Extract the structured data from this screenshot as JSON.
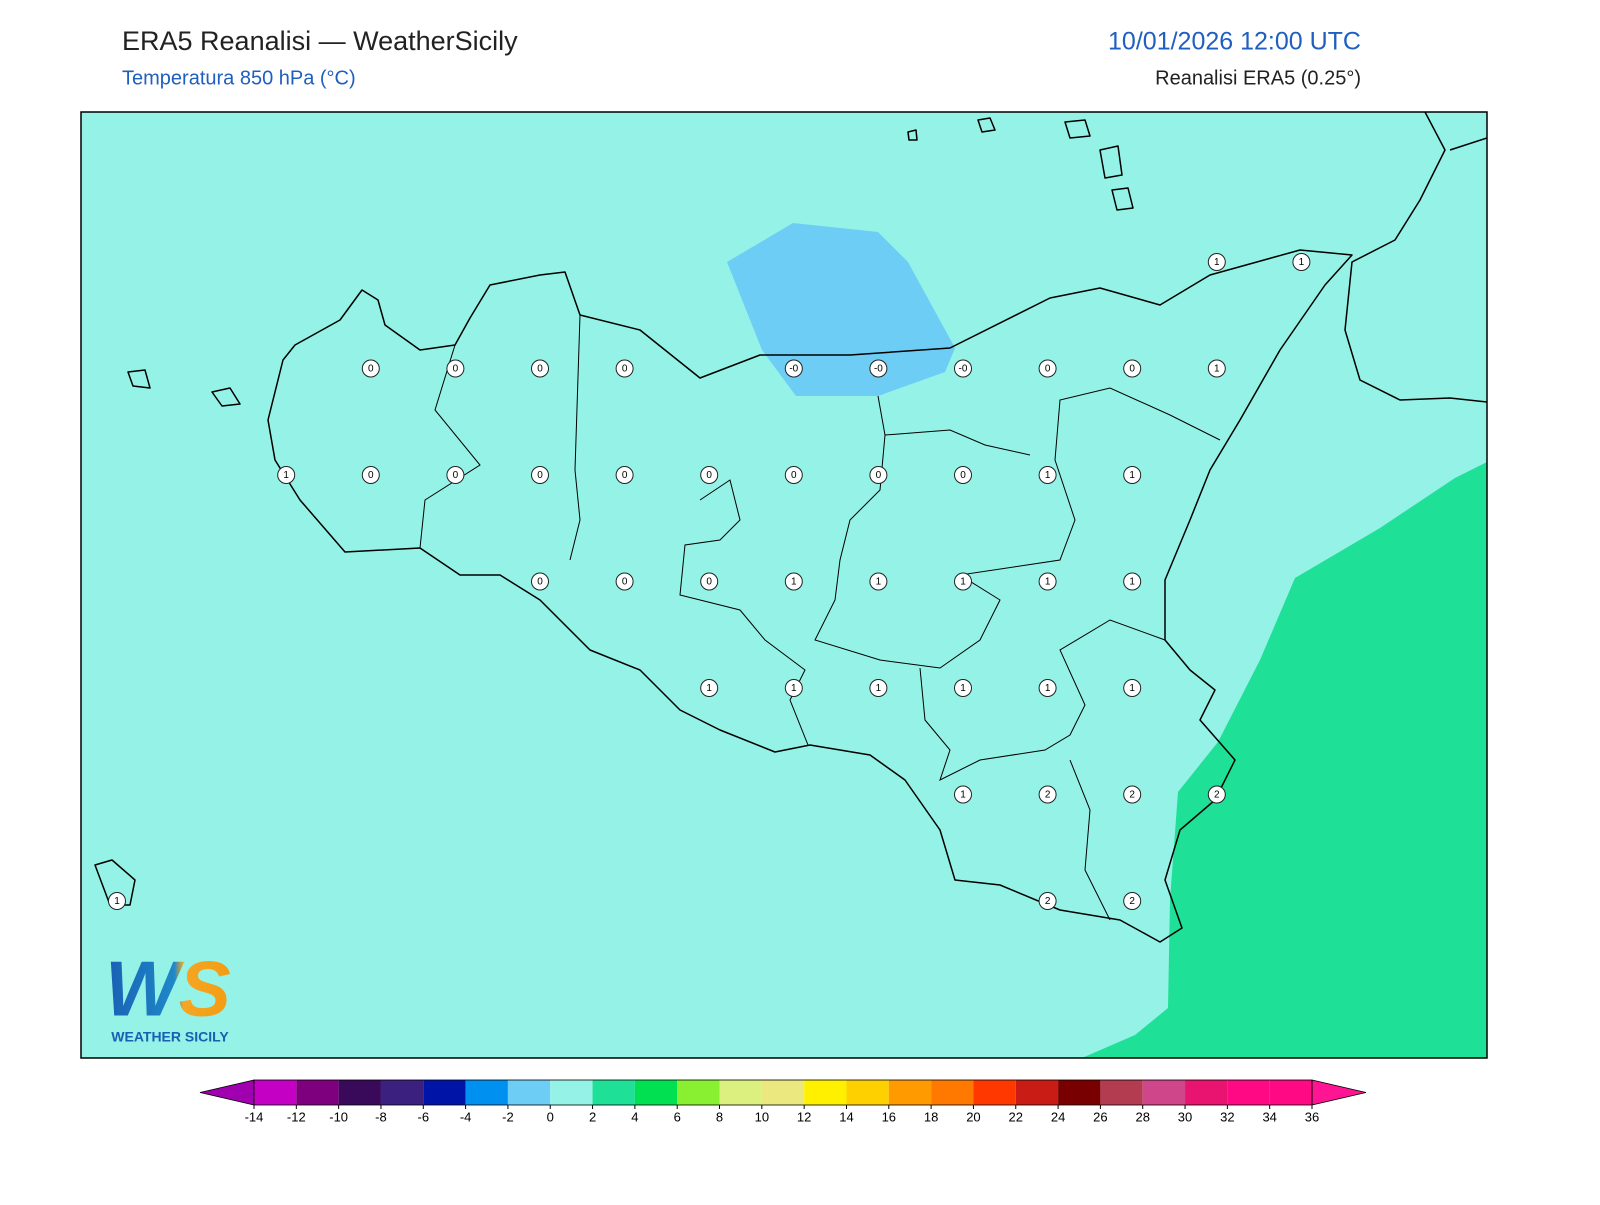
{
  "header": {
    "title": "ERA5 Reanalisi — WeatherSicily",
    "subtitle": "Temperatura 850 hPa (°C)",
    "datetime": "10/01/2026 12:00 UTC",
    "source": "Reanalisi ERA5 (0.25°)"
  },
  "map": {
    "points": [
      "1",
      "1",
      "0",
      "0",
      "0",
      "0",
      "-0",
      "-0",
      "-0",
      "0",
      "0",
      "1",
      "1",
      "0",
      "0",
      "0",
      "0",
      "0",
      "0",
      "0",
      "0",
      "1",
      "1",
      "0",
      "0",
      "0",
      "1",
      "1",
      "1",
      "1",
      "1",
      "1",
      "1",
      "1",
      "1",
      "1",
      "1",
      "1",
      "2",
      "2",
      "2",
      "1",
      "2",
      "2"
    ]
  },
  "logo": {
    "text": "WS",
    "caption": "WEATHER SICILY"
  },
  "legend": {
    "ticks": [
      -14,
      -12,
      -10,
      -8,
      -6,
      -4,
      -2,
      0,
      2,
      4,
      6,
      8,
      10,
      12,
      14,
      16,
      18,
      20,
      22,
      24,
      26,
      28,
      30,
      32,
      34,
      36
    ],
    "colors": [
      "#a000b0",
      "#c400c4",
      "#7f007f",
      "#3a0a5a",
      "#3b2080",
      "#0014a8",
      "#0090f0",
      "#6dcdf5",
      "#95f2e6",
      "#1ee096",
      "#00e050",
      "#88f030",
      "#dcf080",
      "#ece880",
      "#fff000",
      "#ffd000",
      "#ff9a00",
      "#ff7800",
      "#ff3800",
      "#c81c14",
      "#780000",
      "#b43c50",
      "#d0468a",
      "#e81470",
      "#ff0a84",
      "#ff0a84",
      "#ff1493"
    ]
  }
}
